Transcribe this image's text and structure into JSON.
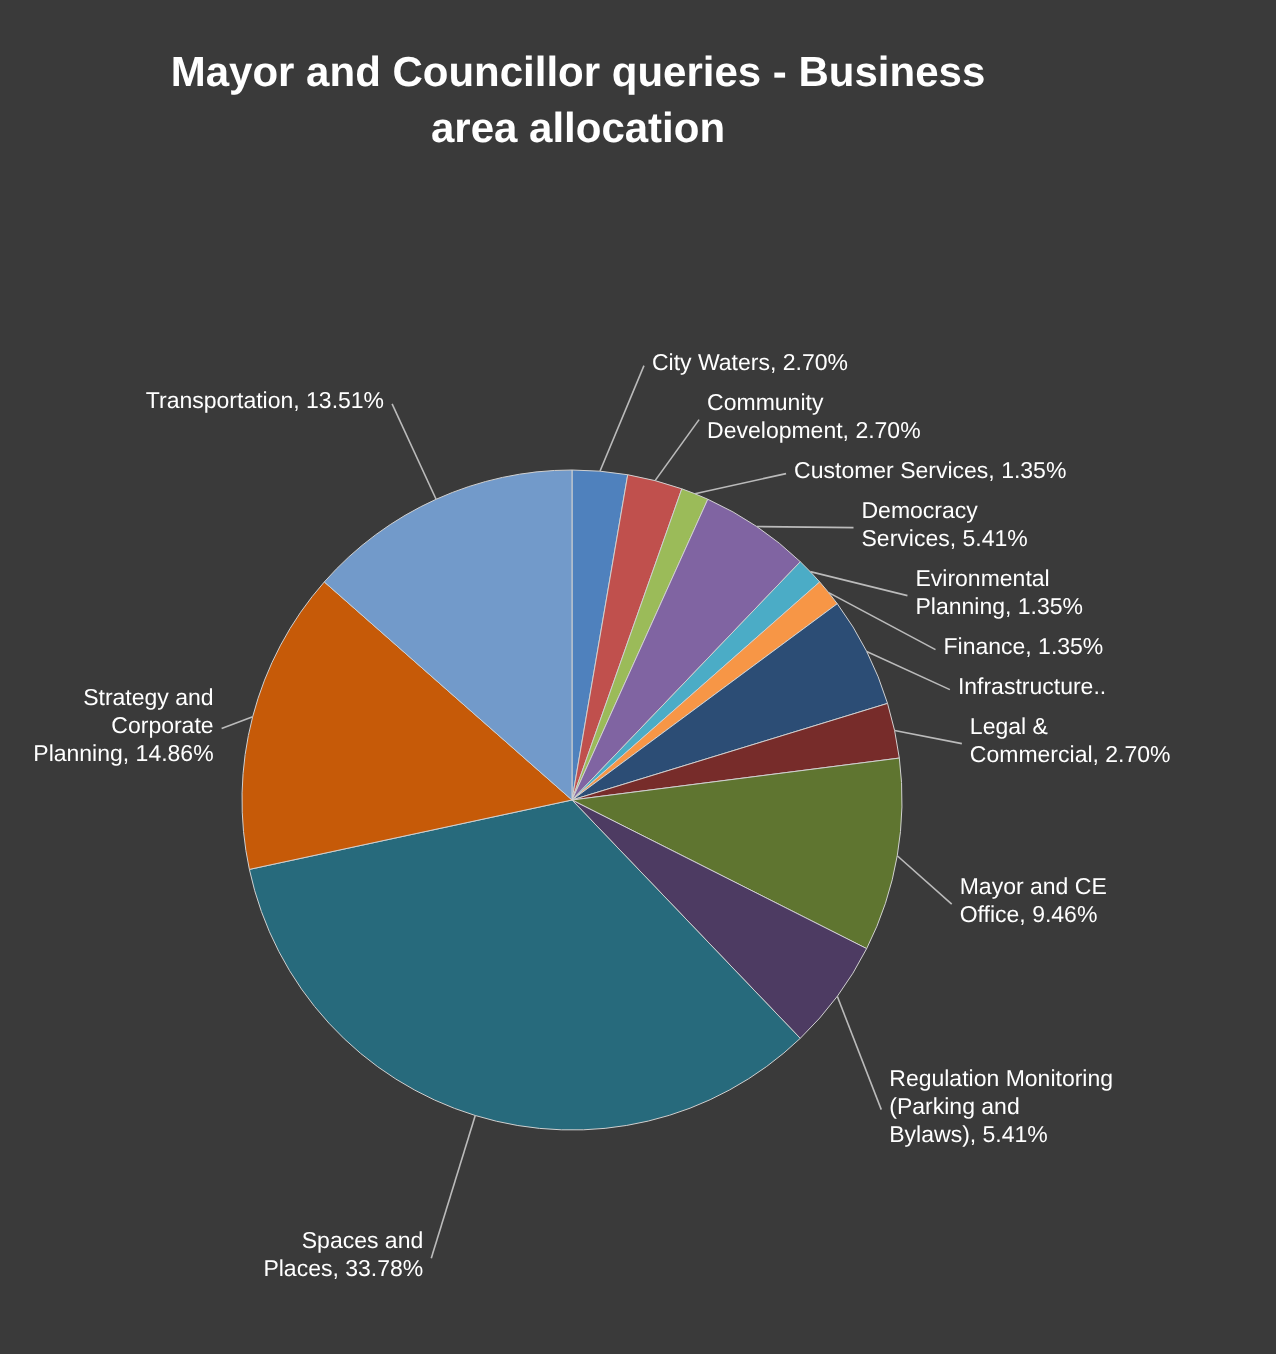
{
  "chart_data": {
    "type": "pie",
    "title": "Mayor and Councillor queries - Business area allocation",
    "categories": [
      "City Waters",
      "Community Development",
      "Customer Services",
      "Democracy Services",
      "Evironmental Planning",
      "Finance",
      "Infrastructure..",
      "Legal & Commercial",
      "Mayor and CE Office",
      "Regulation Monitoring (Parking and Bylaws)",
      "Spaces and Places",
      "Strategy and Corporate Planning",
      "Transportation"
    ],
    "values": [
      2.7,
      2.7,
      1.35,
      5.41,
      1.35,
      1.35,
      5.41,
      2.7,
      9.46,
      5.41,
      33.78,
      14.86,
      13.51
    ],
    "value_labels": [
      "2.70%",
      "2.70%",
      "1.35%",
      "5.41%",
      "1.35%",
      "1.35%",
      null,
      "2.70%",
      "9.46%",
      "5.41%",
      "33.78%",
      "14.86%",
      "13.51%"
    ],
    "colors": [
      "#4f81bd",
      "#c0504d",
      "#9bbb59",
      "#8064a2",
      "#4bacc6",
      "#f79646",
      "#2c4d75",
      "#772c2a",
      "#5f7530",
      "#4d3b62",
      "#276a7c",
      "#c65a08",
      "#729aca"
    ]
  }
}
